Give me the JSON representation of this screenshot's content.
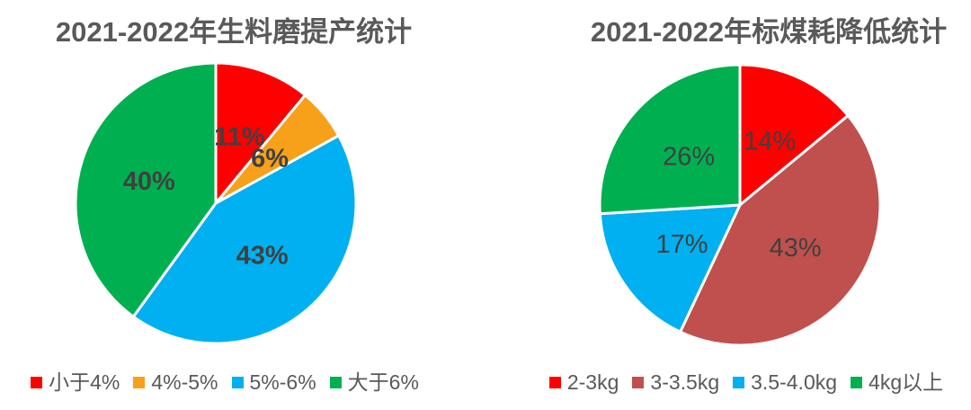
{
  "page": {
    "background": "#FFFFFF",
    "text_gray": "#595959",
    "label_gray": "#404040"
  },
  "chart_data": [
    {
      "type": "pie",
      "title": "2021-2022年生料磨提产统计",
      "start_angle_deg": 0,
      "direction": "clockwise",
      "categories": [
        "小于4%",
        "4%-5%",
        "5%-6%",
        "大于6%"
      ],
      "values": [
        11,
        6,
        43,
        40
      ],
      "data_labels": [
        "11%",
        "6%",
        "43%",
        "40%"
      ],
      "colors": [
        "#FF0000",
        "#F7A01A",
        "#00B0F0",
        "#00B050"
      ],
      "label_color": "#404040",
      "label_weight": "bold",
      "title_color": "#595959",
      "legend_position": "bottom",
      "legend_entries": [
        "小于4%",
        "4%-5%",
        "5%-6%",
        "大于6%"
      ]
    },
    {
      "type": "pie",
      "title": "2021-2022年标煤耗降低统计",
      "start_angle_deg": 0,
      "direction": "clockwise",
      "categories": [
        "2-3kg",
        "3-3.5kg",
        "3.5-4.0kg",
        "4kg以上"
      ],
      "values": [
        14,
        43,
        17,
        26
      ],
      "data_labels": [
        "14%",
        "43%",
        "17%",
        "26%"
      ],
      "colors": [
        "#FF0000",
        "#C0504D",
        "#00B0F0",
        "#00B050"
      ],
      "label_color": "#404040",
      "label_weight": "normal",
      "title_color": "#595959",
      "legend_position": "bottom",
      "legend_entries": [
        "2-3kg",
        "3-3.5kg",
        "3.5-4.0kg",
        "4kg以上"
      ]
    }
  ]
}
